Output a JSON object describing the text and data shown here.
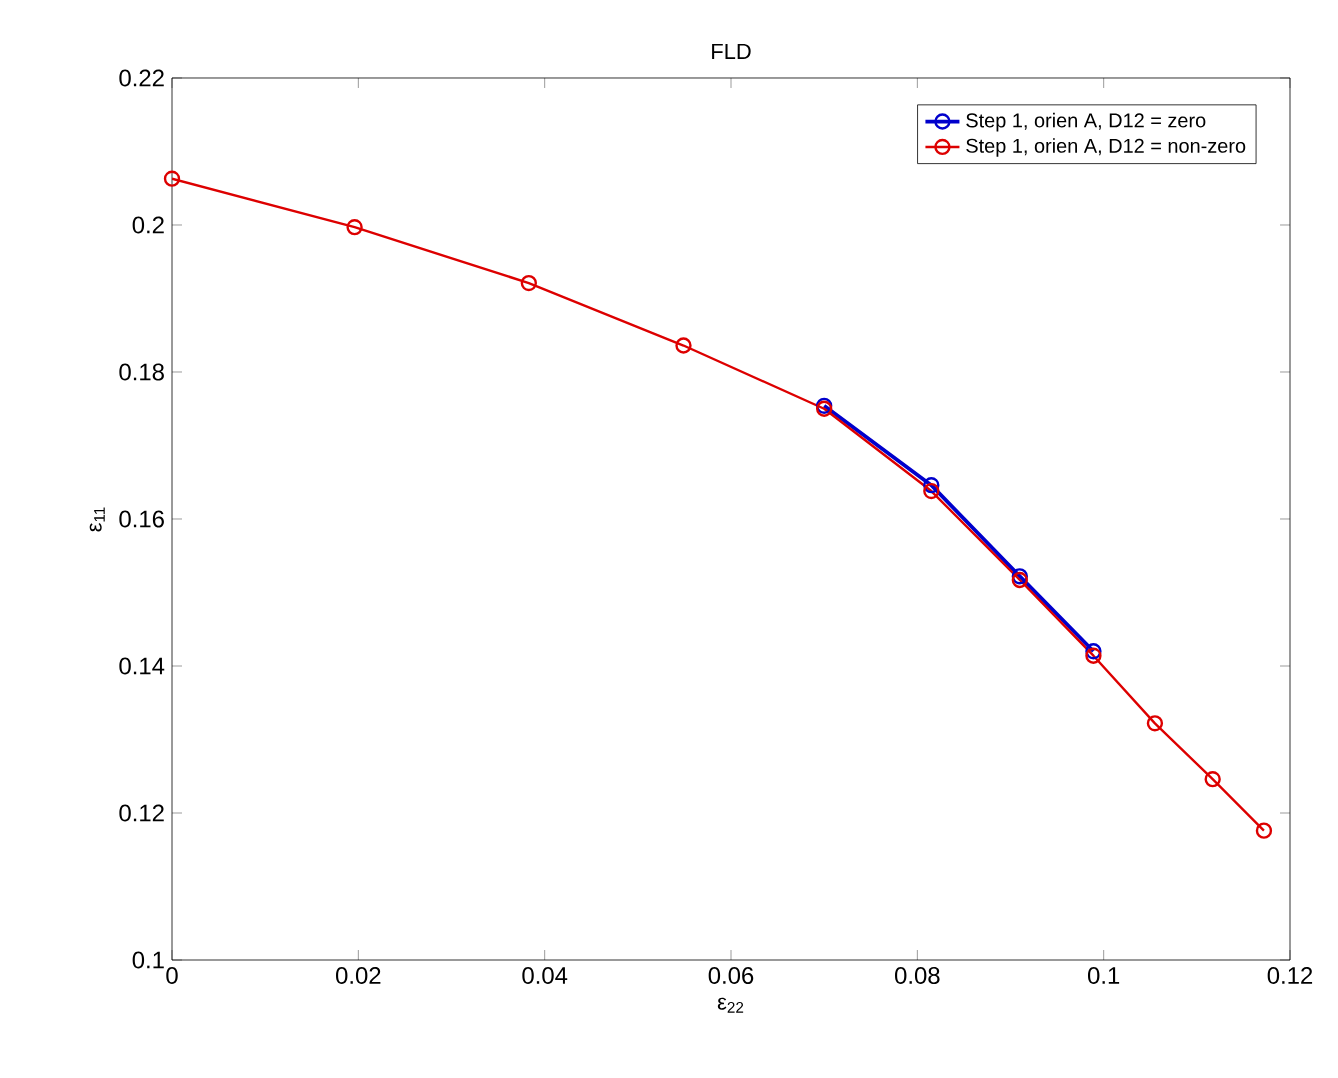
{
  "chart_data": {
    "type": "line",
    "title": "FLD",
    "xlabel": "ε$_{22}$",
    "ylabel": "ε$_{11}$",
    "xlim": [
      0,
      0.12
    ],
    "ylim": [
      0.1,
      0.22
    ],
    "xticks": [
      0,
      0.02,
      0.04,
      0.06,
      0.08,
      0.1,
      0.12
    ],
    "yticks": [
      0.1,
      0.12,
      0.14,
      0.16,
      0.18,
      0.2,
      0.22
    ],
    "marker": "circle",
    "line_style": "solid",
    "legend": "top right",
    "grid": false,
    "series": [
      {
        "name": "Step 1, orien A, D12 = zero",
        "color": "#0000cc",
        "x": [
          0.07,
          0.0815,
          0.091,
          0.0989
        ],
        "values": [
          0.1754,
          0.1646,
          0.1522,
          0.142
        ]
      },
      {
        "name": "Step 1, orien A, D12 = non-zero",
        "color": "#dd0000",
        "x": [
          0,
          0.0196,
          0.0383,
          0.0549,
          0.07,
          0.0815,
          0.091,
          0.0989,
          0.1055,
          0.1117,
          0.1172
        ],
        "values": [
          0.2063,
          0.1997,
          0.1921,
          0.1836,
          0.175,
          0.1638,
          0.1517,
          0.1414,
          0.1322,
          0.1246,
          0.1176
        ]
      }
    ]
  }
}
